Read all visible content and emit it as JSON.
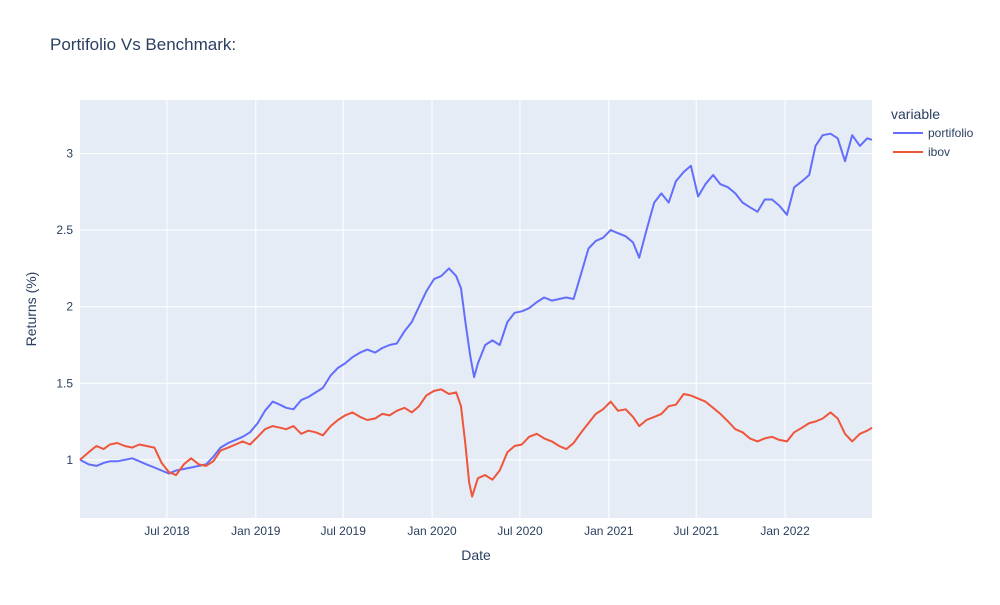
{
  "chart_data": {
    "type": "line",
    "title": "Portifolio Vs Benchmark:",
    "xlabel": "Date",
    "ylabel": "Returns (%)",
    "x_ticks": [
      "Jul 2018",
      "Jan 2019",
      "Jul 2019",
      "Jan 2020",
      "Jul 2020",
      "Jan 2021",
      "Jul 2021",
      "Jan 2022"
    ],
    "y_ticks": [
      "1",
      "1.5",
      "2",
      "2.5",
      "3"
    ],
    "xlim": [
      "2018-01-02",
      "2022-06-30"
    ],
    "ylim": [
      0.62,
      3.35
    ],
    "legend": {
      "title": "variable",
      "position": "top-right"
    },
    "grid": true,
    "background": "#E5ECF6",
    "series": [
      {
        "name": "portifolio",
        "color": "#636EFA",
        "points": [
          [
            "2018-01-02",
            1.0
          ],
          [
            "2018-01-20",
            0.97
          ],
          [
            "2018-02-05",
            0.96
          ],
          [
            "2018-02-20",
            0.98
          ],
          [
            "2018-03-05",
            0.99
          ],
          [
            "2018-03-20",
            0.99
          ],
          [
            "2018-04-05",
            1.0
          ],
          [
            "2018-04-20",
            1.01
          ],
          [
            "2018-05-05",
            0.99
          ],
          [
            "2018-05-20",
            0.97
          ],
          [
            "2018-06-05",
            0.95
          ],
          [
            "2018-06-20",
            0.93
          ],
          [
            "2018-07-05",
            0.91
          ],
          [
            "2018-07-20",
            0.93
          ],
          [
            "2018-08-05",
            0.94
          ],
          [
            "2018-08-20",
            0.95
          ],
          [
            "2018-09-05",
            0.96
          ],
          [
            "2018-09-20",
            0.97
          ],
          [
            "2018-10-05",
            1.02
          ],
          [
            "2018-10-20",
            1.08
          ],
          [
            "2018-11-05",
            1.11
          ],
          [
            "2018-11-20",
            1.13
          ],
          [
            "2018-12-05",
            1.15
          ],
          [
            "2018-12-20",
            1.18
          ],
          [
            "2019-01-05",
            1.24
          ],
          [
            "2019-01-20",
            1.32
          ],
          [
            "2019-02-05",
            1.38
          ],
          [
            "2019-02-20",
            1.36
          ],
          [
            "2019-03-05",
            1.34
          ],
          [
            "2019-03-20",
            1.33
          ],
          [
            "2019-04-05",
            1.39
          ],
          [
            "2019-04-20",
            1.41
          ],
          [
            "2019-05-05",
            1.44
          ],
          [
            "2019-05-20",
            1.47
          ],
          [
            "2019-06-05",
            1.55
          ],
          [
            "2019-06-20",
            1.6
          ],
          [
            "2019-07-05",
            1.63
          ],
          [
            "2019-07-20",
            1.67
          ],
          [
            "2019-08-05",
            1.7
          ],
          [
            "2019-08-20",
            1.72
          ],
          [
            "2019-09-05",
            1.7
          ],
          [
            "2019-09-20",
            1.73
          ],
          [
            "2019-10-05",
            1.75
          ],
          [
            "2019-10-20",
            1.76
          ],
          [
            "2019-11-05",
            1.84
          ],
          [
            "2019-11-20",
            1.9
          ],
          [
            "2019-12-05",
            2.0
          ],
          [
            "2019-12-20",
            2.1
          ],
          [
            "2020-01-05",
            2.18
          ],
          [
            "2020-01-20",
            2.2
          ],
          [
            "2020-02-05",
            2.25
          ],
          [
            "2020-02-20",
            2.2
          ],
          [
            "2020-03-01",
            2.12
          ],
          [
            "2020-03-10",
            1.9
          ],
          [
            "2020-03-20",
            1.68
          ],
          [
            "2020-03-28",
            1.54
          ],
          [
            "2020-04-05",
            1.63
          ],
          [
            "2020-04-20",
            1.75
          ],
          [
            "2020-05-05",
            1.78
          ],
          [
            "2020-05-20",
            1.75
          ],
          [
            "2020-06-05",
            1.9
          ],
          [
            "2020-06-20",
            1.96
          ],
          [
            "2020-07-05",
            1.97
          ],
          [
            "2020-07-20",
            1.99
          ],
          [
            "2020-08-05",
            2.03
          ],
          [
            "2020-08-20",
            2.06
          ],
          [
            "2020-09-05",
            2.04
          ],
          [
            "2020-09-20",
            2.05
          ],
          [
            "2020-10-05",
            2.06
          ],
          [
            "2020-10-20",
            2.05
          ],
          [
            "2020-11-05",
            2.22
          ],
          [
            "2020-11-20",
            2.38
          ],
          [
            "2020-12-05",
            2.43
          ],
          [
            "2020-12-20",
            2.45
          ],
          [
            "2021-01-05",
            2.5
          ],
          [
            "2021-01-20",
            2.48
          ],
          [
            "2021-02-05",
            2.46
          ],
          [
            "2021-02-20",
            2.42
          ],
          [
            "2021-03-05",
            2.32
          ],
          [
            "2021-03-20",
            2.5
          ],
          [
            "2021-04-05",
            2.68
          ],
          [
            "2021-04-20",
            2.74
          ],
          [
            "2021-05-05",
            2.68
          ],
          [
            "2021-05-20",
            2.82
          ],
          [
            "2021-06-05",
            2.88
          ],
          [
            "2021-06-20",
            2.92
          ],
          [
            "2021-07-05",
            2.72
          ],
          [
            "2021-07-20",
            2.8
          ],
          [
            "2021-08-05",
            2.86
          ],
          [
            "2021-08-20",
            2.8
          ],
          [
            "2021-09-05",
            2.78
          ],
          [
            "2021-09-20",
            2.74
          ],
          [
            "2021-10-05",
            2.68
          ],
          [
            "2021-10-20",
            2.65
          ],
          [
            "2021-11-05",
            2.62
          ],
          [
            "2021-11-20",
            2.7
          ],
          [
            "2021-12-05",
            2.7
          ],
          [
            "2021-12-20",
            2.66
          ],
          [
            "2022-01-05",
            2.6
          ],
          [
            "2022-01-20",
            2.78
          ],
          [
            "2022-02-05",
            2.82
          ],
          [
            "2022-02-20",
            2.86
          ],
          [
            "2022-03-05",
            3.05
          ],
          [
            "2022-03-20",
            3.12
          ],
          [
            "2022-04-05",
            3.13
          ],
          [
            "2022-04-20",
            3.1
          ],
          [
            "2022-05-05",
            2.95
          ],
          [
            "2022-05-20",
            3.12
          ],
          [
            "2022-06-05",
            3.05
          ],
          [
            "2022-06-20",
            3.1
          ],
          [
            "2022-06-30",
            3.09
          ]
        ]
      },
      {
        "name": "ibov",
        "color": "#EF553B",
        "points": [
          [
            "2018-01-02",
            1.0
          ],
          [
            "2018-01-20",
            1.05
          ],
          [
            "2018-02-05",
            1.09
          ],
          [
            "2018-02-20",
            1.07
          ],
          [
            "2018-03-05",
            1.1
          ],
          [
            "2018-03-20",
            1.11
          ],
          [
            "2018-04-05",
            1.09
          ],
          [
            "2018-04-20",
            1.08
          ],
          [
            "2018-05-05",
            1.1
          ],
          [
            "2018-05-20",
            1.09
          ],
          [
            "2018-06-05",
            1.08
          ],
          [
            "2018-06-20",
            0.98
          ],
          [
            "2018-07-05",
            0.92
          ],
          [
            "2018-07-20",
            0.9
          ],
          [
            "2018-08-05",
            0.97
          ],
          [
            "2018-08-20",
            1.01
          ],
          [
            "2018-09-05",
            0.97
          ],
          [
            "2018-09-20",
            0.96
          ],
          [
            "2018-10-05",
            0.99
          ],
          [
            "2018-10-20",
            1.06
          ],
          [
            "2018-11-05",
            1.08
          ],
          [
            "2018-11-20",
            1.1
          ],
          [
            "2018-12-05",
            1.12
          ],
          [
            "2018-12-20",
            1.1
          ],
          [
            "2019-01-05",
            1.15
          ],
          [
            "2019-01-20",
            1.2
          ],
          [
            "2019-02-05",
            1.22
          ],
          [
            "2019-02-20",
            1.21
          ],
          [
            "2019-03-05",
            1.2
          ],
          [
            "2019-03-20",
            1.22
          ],
          [
            "2019-04-05",
            1.17
          ],
          [
            "2019-04-20",
            1.19
          ],
          [
            "2019-05-05",
            1.18
          ],
          [
            "2019-05-20",
            1.16
          ],
          [
            "2019-06-05",
            1.22
          ],
          [
            "2019-06-20",
            1.26
          ],
          [
            "2019-07-05",
            1.29
          ],
          [
            "2019-07-20",
            1.31
          ],
          [
            "2019-08-05",
            1.28
          ],
          [
            "2019-08-20",
            1.26
          ],
          [
            "2019-09-05",
            1.27
          ],
          [
            "2019-09-20",
            1.3
          ],
          [
            "2019-10-05",
            1.29
          ],
          [
            "2019-10-20",
            1.32
          ],
          [
            "2019-11-05",
            1.34
          ],
          [
            "2019-11-20",
            1.31
          ],
          [
            "2019-12-05",
            1.35
          ],
          [
            "2019-12-20",
            1.42
          ],
          [
            "2020-01-05",
            1.45
          ],
          [
            "2020-01-20",
            1.46
          ],
          [
            "2020-02-05",
            1.43
          ],
          [
            "2020-02-20",
            1.44
          ],
          [
            "2020-03-01",
            1.35
          ],
          [
            "2020-03-10",
            1.1
          ],
          [
            "2020-03-18",
            0.85
          ],
          [
            "2020-03-24",
            0.76
          ],
          [
            "2020-04-05",
            0.88
          ],
          [
            "2020-04-20",
            0.9
          ],
          [
            "2020-05-05",
            0.87
          ],
          [
            "2020-05-20",
            0.93
          ],
          [
            "2020-06-05",
            1.05
          ],
          [
            "2020-06-20",
            1.09
          ],
          [
            "2020-07-05",
            1.1
          ],
          [
            "2020-07-20",
            1.15
          ],
          [
            "2020-08-05",
            1.17
          ],
          [
            "2020-08-20",
            1.14
          ],
          [
            "2020-09-05",
            1.12
          ],
          [
            "2020-09-20",
            1.09
          ],
          [
            "2020-10-05",
            1.07
          ],
          [
            "2020-10-20",
            1.11
          ],
          [
            "2020-11-05",
            1.18
          ],
          [
            "2020-11-20",
            1.24
          ],
          [
            "2020-12-05",
            1.3
          ],
          [
            "2020-12-20",
            1.33
          ],
          [
            "2021-01-05",
            1.38
          ],
          [
            "2021-01-20",
            1.32
          ],
          [
            "2021-02-05",
            1.33
          ],
          [
            "2021-02-20",
            1.28
          ],
          [
            "2021-03-05",
            1.22
          ],
          [
            "2021-03-20",
            1.26
          ],
          [
            "2021-04-05",
            1.28
          ],
          [
            "2021-04-20",
            1.3
          ],
          [
            "2021-05-05",
            1.35
          ],
          [
            "2021-05-20",
            1.36
          ],
          [
            "2021-06-05",
            1.43
          ],
          [
            "2021-06-20",
            1.42
          ],
          [
            "2021-07-05",
            1.4
          ],
          [
            "2021-07-20",
            1.38
          ],
          [
            "2021-08-05",
            1.34
          ],
          [
            "2021-08-20",
            1.3
          ],
          [
            "2021-09-05",
            1.25
          ],
          [
            "2021-09-20",
            1.2
          ],
          [
            "2021-10-05",
            1.18
          ],
          [
            "2021-10-20",
            1.14
          ],
          [
            "2021-11-05",
            1.12
          ],
          [
            "2021-11-20",
            1.14
          ],
          [
            "2021-12-05",
            1.15
          ],
          [
            "2021-12-20",
            1.13
          ],
          [
            "2022-01-05",
            1.12
          ],
          [
            "2022-01-20",
            1.18
          ],
          [
            "2022-02-05",
            1.21
          ],
          [
            "2022-02-20",
            1.24
          ],
          [
            "2022-03-05",
            1.25
          ],
          [
            "2022-03-20",
            1.27
          ],
          [
            "2022-04-05",
            1.31
          ],
          [
            "2022-04-20",
            1.27
          ],
          [
            "2022-05-05",
            1.17
          ],
          [
            "2022-05-20",
            1.12
          ],
          [
            "2022-06-05",
            1.17
          ],
          [
            "2022-06-20",
            1.19
          ],
          [
            "2022-06-30",
            1.21
          ]
        ]
      }
    ]
  }
}
